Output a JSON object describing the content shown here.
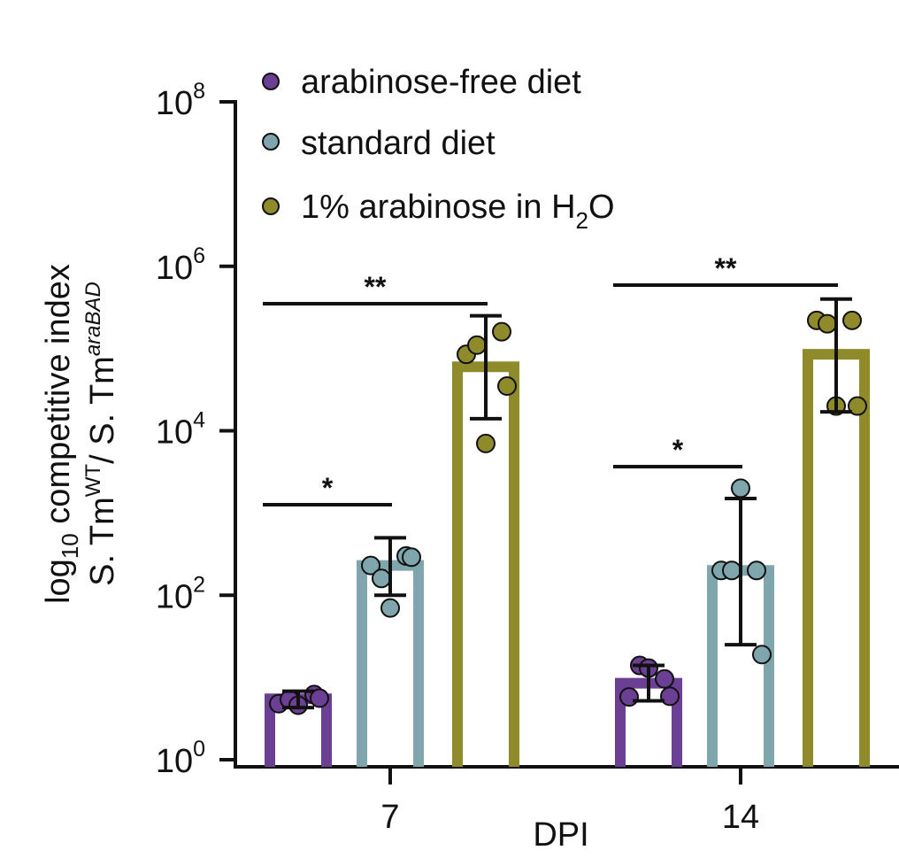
{
  "chart_data": {
    "type": "bar",
    "y_scale": "log10",
    "ylim": [
      1,
      100000000
    ],
    "ylabel": {
      "line1_main": "log",
      "line1_sub": "10",
      "line1_rest": " competitive index",
      "line2_a": "S. Tm",
      "line2_sup1": "WT",
      "line2_b": "/ S. Tm",
      "line2_sup2": "araBAD"
    },
    "xlabel": "DPI",
    "yticks": [
      {
        "base": "10",
        "exp": "0",
        "value": 1
      },
      {
        "base": "10",
        "exp": "2",
        "value": 100
      },
      {
        "base": "10",
        "exp": "4",
        "value": 10000
      },
      {
        "base": "10",
        "exp": "6",
        "value": 1000000
      },
      {
        "base": "10",
        "exp": "8",
        "value": 100000000
      }
    ],
    "categories": [
      "7",
      "14"
    ],
    "legend": {
      "placement": "top-left",
      "items": [
        {
          "label": "arabinose-free diet",
          "color": "#6b3f93"
        },
        {
          "label": "standard diet",
          "color": "#7fa6ad"
        },
        {
          "label_main": "1% arabinose in H",
          "label_sub": "2",
          "label_tail": "O",
          "color": "#8f8b2b"
        }
      ]
    },
    "series": [
      {
        "color": "#6b3f93",
        "values": [
          5.5,
          8.5
        ],
        "errors": [
          [
            4.3,
            6.8
          ],
          [
            5.2,
            14
          ]
        ],
        "points": [
          [
            4.8,
            6.2,
            5.4,
            5.6,
            4.6
          ],
          [
            5.8,
            9.6,
            14,
            5.9,
            13
          ]
        ]
      },
      {
        "color": "#7fa6ad",
        "values": [
          230,
          200
        ],
        "errors": [
          [
            100,
            500
          ],
          [
            25,
            1500
          ]
        ],
        "points": [
          [
            230,
            300,
            160,
            290,
            70
          ],
          [
            200,
            200,
            200,
            19,
            2000
          ]
        ]
      },
      {
        "color": "#8f8b2b",
        "values": [
          60000,
          85000
        ],
        "errors": [
          [
            14000,
            250000
          ],
          [
            17000,
            400000
          ]
        ],
        "points": [
          [
            85000,
            160000,
            110000,
            35000,
            7000
          ],
          [
            220000,
            220000,
            200000,
            20000,
            20000
          ]
        ]
      }
    ],
    "significance": [
      {
        "label": "*",
        "group": 0,
        "from": 0,
        "to": 1
      },
      {
        "label": "**",
        "group": 0,
        "from": 0,
        "to": 2
      },
      {
        "label": "*",
        "group": 1,
        "from": 0,
        "to": 1
      },
      {
        "label": "**",
        "group": 1,
        "from": 0,
        "to": 2
      }
    ]
  }
}
